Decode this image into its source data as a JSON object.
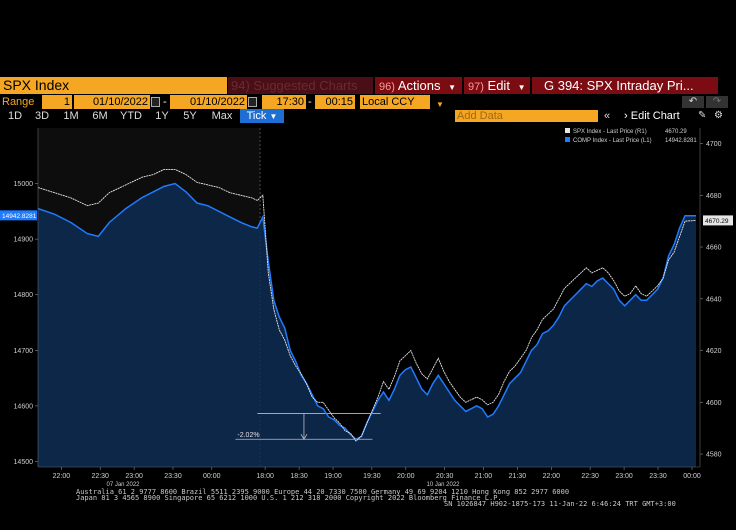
{
  "top_bar": {
    "ticker": "SPX Index",
    "suggested_num": "94)",
    "suggested": "Suggested Charts",
    "actions_num": "96)",
    "actions": "Actions",
    "edit_num": "97)",
    "edit": "Edit",
    "chart_title": "G 394: SPX Intraday Pri..."
  },
  "range_bar": {
    "label": "Range",
    "range_value": "1",
    "start_date": "01/10/2022",
    "end_date": "01/10/2022",
    "time": "17:30",
    "interval": "00:15",
    "currency": "Local CCY"
  },
  "period_bar": {
    "periods": [
      "1D",
      "3D",
      "1M",
      "6M",
      "YTD",
      "1Y",
      "5Y",
      "Max",
      "Tick"
    ],
    "add_data_placeholder": "Add Data",
    "edit_chart": "Edit Chart"
  },
  "chart_data": {
    "type": "line",
    "legend": [
      {
        "name": "SPX Index - Last Price (R1)",
        "value": "4670.29",
        "color": "#e6e6e6"
      },
      {
        "name": "COMP Index - Last Price (L1)",
        "value": "14942.8281",
        "color": "#1f7bff"
      }
    ],
    "legend_placement": "top-right",
    "left_axis": {
      "ticks": [
        "15000",
        "14900",
        "14800",
        "14700",
        "14600",
        "14500"
      ],
      "range": [
        14490,
        15100
      ],
      "current": "14942.8281"
    },
    "right_axis": {
      "ticks": [
        "4700",
        "4680",
        "4660",
        "4640",
        "4620",
        "4600",
        "4580"
      ],
      "range": [
        4575,
        4706
      ],
      "current": "4670.29"
    },
    "x_ticks": [
      "22:00",
      "22:30",
      "23:00",
      "23:30",
      "00:00",
      "18:00",
      "18:30",
      "19:00",
      "19:30",
      "20:00",
      "20:30",
      "21:00",
      "21:30",
      "22:00",
      "22:30",
      "23:00",
      "23:30",
      "00:00"
    ],
    "day_labels": [
      "07 Jan 2022",
      "10 Jan 2022"
    ],
    "annotation": "-2.02%",
    "series_comp": [
      [
        0,
        14955
      ],
      [
        3,
        14945
      ],
      [
        6,
        14930
      ],
      [
        9,
        14910
      ],
      [
        11,
        14905
      ],
      [
        13,
        14930
      ],
      [
        16,
        14955
      ],
      [
        19,
        14975
      ],
      [
        21,
        14985
      ],
      [
        23,
        14995
      ],
      [
        25,
        15000
      ],
      [
        27,
        14985
      ],
      [
        29,
        14965
      ],
      [
        31,
        14960
      ],
      [
        33,
        14950
      ],
      [
        35,
        14940
      ],
      [
        37,
        14930
      ],
      [
        39,
        14922
      ],
      [
        40,
        14920
      ],
      [
        41,
        14940
      ],
      [
        42,
        14860
      ],
      [
        43,
        14790
      ],
      [
        44,
        14760
      ],
      [
        45,
        14740
      ],
      [
        46,
        14700
      ],
      [
        47,
        14680
      ],
      [
        48,
        14655
      ],
      [
        49,
        14640
      ],
      [
        50,
        14620
      ],
      [
        51,
        14600
      ],
      [
        52,
        14595
      ],
      [
        53,
        14580
      ],
      [
        54,
        14575
      ],
      [
        55,
        14565
      ],
      [
        56,
        14560
      ],
      [
        57,
        14548
      ],
      [
        58,
        14540
      ],
      [
        59,
        14545
      ],
      [
        60,
        14570
      ],
      [
        61,
        14590
      ],
      [
        62,
        14610
      ],
      [
        63,
        14625
      ],
      [
        64,
        14610
      ],
      [
        65,
        14630
      ],
      [
        66,
        14655
      ],
      [
        67,
        14665
      ],
      [
        68,
        14670
      ],
      [
        69,
        14650
      ],
      [
        70,
        14630
      ],
      [
        71,
        14620
      ],
      [
        72,
        14640
      ],
      [
        73,
        14655
      ],
      [
        74,
        14640
      ],
      [
        75,
        14625
      ],
      [
        76,
        14610
      ],
      [
        77,
        14600
      ],
      [
        78,
        14590
      ],
      [
        79,
        14595
      ],
      [
        80,
        14600
      ],
      [
        81,
        14595
      ],
      [
        82,
        14580
      ],
      [
        83,
        14585
      ],
      [
        84,
        14600
      ],
      [
        85,
        14620
      ],
      [
        86,
        14640
      ],
      [
        87,
        14650
      ],
      [
        88,
        14660
      ],
      [
        89,
        14680
      ],
      [
        90,
        14700
      ],
      [
        91,
        14710
      ],
      [
        92,
        14730
      ],
      [
        93,
        14735
      ],
      [
        94,
        14745
      ],
      [
        95,
        14760
      ],
      [
        96,
        14780
      ],
      [
        97,
        14790
      ],
      [
        98,
        14800
      ],
      [
        99,
        14810
      ],
      [
        100,
        14820
      ],
      [
        101,
        14815
      ],
      [
        102,
        14825
      ],
      [
        103,
        14830
      ],
      [
        104,
        14820
      ],
      [
        105,
        14810
      ],
      [
        106,
        14790
      ],
      [
        107,
        14780
      ],
      [
        108,
        14790
      ],
      [
        109,
        14800
      ],
      [
        110,
        14790
      ],
      [
        111,
        14790
      ],
      [
        112,
        14800
      ],
      [
        113,
        14810
      ],
      [
        114,
        14830
      ],
      [
        115,
        14870
      ],
      [
        116,
        14890
      ],
      [
        117,
        14920
      ],
      [
        118,
        14942
      ],
      [
        120,
        14942
      ]
    ],
    "series_spx": [
      [
        0,
        4683
      ],
      [
        3,
        4681
      ],
      [
        6,
        4679
      ],
      [
        9,
        4676
      ],
      [
        11,
        4677
      ],
      [
        13,
        4681
      ],
      [
        16,
        4684
      ],
      [
        19,
        4687
      ],
      [
        21,
        4688
      ],
      [
        23,
        4690
      ],
      [
        25,
        4690
      ],
      [
        27,
        4688
      ],
      [
        29,
        4685
      ],
      [
        31,
        4684
      ],
      [
        33,
        4683
      ],
      [
        35,
        4681
      ],
      [
        37,
        4680
      ],
      [
        39,
        4679
      ],
      [
        40,
        4678
      ],
      [
        41,
        4680
      ],
      [
        42,
        4650
      ],
      [
        43,
        4636
      ],
      [
        44,
        4628
      ],
      [
        45,
        4624
      ],
      [
        46,
        4618
      ],
      [
        47,
        4614
      ],
      [
        48,
        4611
      ],
      [
        49,
        4607
      ],
      [
        50,
        4602
      ],
      [
        51,
        4600
      ],
      [
        52,
        4600
      ],
      [
        53,
        4597
      ],
      [
        54,
        4594
      ],
      [
        55,
        4592
      ],
      [
        56,
        4589
      ],
      [
        57,
        4588
      ],
      [
        58,
        4585
      ],
      [
        59,
        4587
      ],
      [
        60,
        4592
      ],
      [
        61,
        4597
      ],
      [
        62,
        4602
      ],
      [
        63,
        4608
      ],
      [
        64,
        4605
      ],
      [
        65,
        4610
      ],
      [
        66,
        4616
      ],
      [
        67,
        4618
      ],
      [
        68,
        4620
      ],
      [
        69,
        4615
      ],
      [
        70,
        4611
      ],
      [
        71,
        4609
      ],
      [
        72,
        4613
      ],
      [
        73,
        4617
      ],
      [
        74,
        4612
      ],
      [
        75,
        4608
      ],
      [
        76,
        4605
      ],
      [
        77,
        4602
      ],
      [
        78,
        4600
      ],
      [
        79,
        4601
      ],
      [
        80,
        4602
      ],
      [
        81,
        4601
      ],
      [
        82,
        4599
      ],
      [
        83,
        4600
      ],
      [
        84,
        4603
      ],
      [
        85,
        4608
      ],
      [
        86,
        4612
      ],
      [
        87,
        4614
      ],
      [
        88,
        4617
      ],
      [
        89,
        4620
      ],
      [
        90,
        4625
      ],
      [
        91,
        4628
      ],
      [
        92,
        4632
      ],
      [
        93,
        4634
      ],
      [
        94,
        4636
      ],
      [
        95,
        4640
      ],
      [
        96,
        4644
      ],
      [
        97,
        4646
      ],
      [
        98,
        4648
      ],
      [
        99,
        4650
      ],
      [
        100,
        4652
      ],
      [
        101,
        4650
      ],
      [
        102,
        4651
      ],
      [
        103,
        4652
      ],
      [
        104,
        4650
      ],
      [
        105,
        4647
      ],
      [
        106,
        4643
      ],
      [
        107,
        4641
      ],
      [
        108,
        4642
      ],
      [
        109,
        4645
      ],
      [
        110,
        4642
      ],
      [
        111,
        4641
      ],
      [
        112,
        4643
      ],
      [
        113,
        4645
      ],
      [
        114,
        4648
      ],
      [
        115,
        4655
      ],
      [
        116,
        4658
      ],
      [
        117,
        4664
      ],
      [
        118,
        4670
      ],
      [
        120,
        4670.29
      ]
    ]
  },
  "footer": {
    "line1": "Australia 61 2 9777 8600 Brazil 5511 2395 9000 Europe 44 20 7330 7500 Germany 49 69 9204 1210 Hong Kong 852 2977 6000",
    "line2": "Japan 81 3 4565 8900          Singapore 65 6212 1000          U.S. 1 212 318 2000          Copyright 2022 Bloomberg Finance L.P.",
    "line3": "SN 1026847 H902-1875-173 11-Jan-22  6:46:24 TRT  GMT+3:00"
  }
}
